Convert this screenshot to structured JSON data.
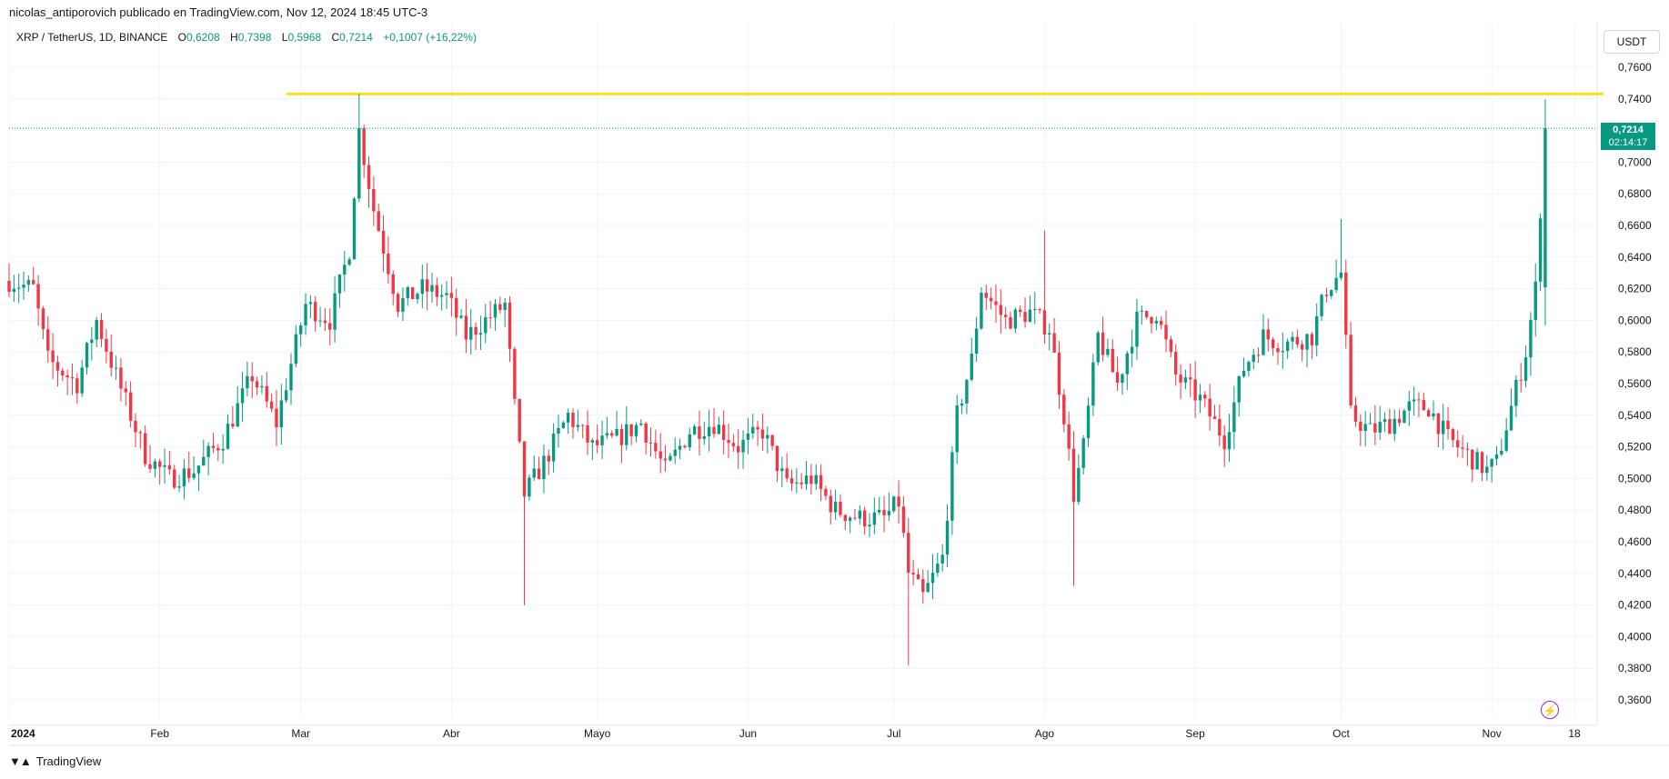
{
  "header": {
    "text": "nicolas_antiporovich publicado en TradingView.com, Nov 12, 2024 18:45 UTC-3"
  },
  "legend": {
    "symbol": "XRP / TetherUS, 1D, BINANCE",
    "o_label": "O",
    "o_value": "0,6208",
    "h_label": "H",
    "h_value": "0,7398",
    "l_label": "L",
    "l_value": "0,5968",
    "c_label": "C",
    "c_value": "0,7214",
    "change": "+0,1007 (+16,22%)"
  },
  "currency_button": "USDT",
  "price_tag": {
    "price": "0,7214",
    "countdown": "02:14:17"
  },
  "footer": {
    "brand": "TradingView"
  },
  "colors": {
    "up": "#089981",
    "down": "#f23645",
    "hline": "#f7e017",
    "grid": "#f0f3fa"
  },
  "chart_data": {
    "type": "candlestick",
    "title": "XRP / TetherUS, 1D, BINANCE",
    "ylim": [
      0.35,
      0.77
    ],
    "y_ticks": [
      "0,7600",
      "0,7400",
      "0,7200",
      "0,7000",
      "0,6800",
      "0,6600",
      "0,6400",
      "0,6200",
      "0,6000",
      "0,5800",
      "0,5600",
      "0,5400",
      "0,5200",
      "0,5000",
      "0,4800",
      "0,4600",
      "0,4400",
      "0,4200",
      "0,4000",
      "0,3800",
      "0,3600"
    ],
    "y_tick_values": [
      0.76,
      0.74,
      0.72,
      0.7,
      0.68,
      0.66,
      0.64,
      0.62,
      0.6,
      0.58,
      0.56,
      0.54,
      0.52,
      0.5,
      0.48,
      0.46,
      0.44,
      0.42,
      0.4,
      0.38,
      0.36
    ],
    "x_ticks": [
      {
        "label": "2024",
        "day": 0,
        "bold": true
      },
      {
        "label": "Feb",
        "day": 31
      },
      {
        "label": "Mar",
        "day": 60
      },
      {
        "label": "Abr",
        "day": 91
      },
      {
        "label": "Mayo",
        "day": 121
      },
      {
        "label": "Jun",
        "day": 152
      },
      {
        "label": "Jul",
        "day": 182
      },
      {
        "label": "Ago",
        "day": 213
      },
      {
        "label": "Sep",
        "day": 244
      },
      {
        "label": "Oct",
        "day": 274
      },
      {
        "label": "Nov",
        "day": 305
      },
      {
        "label": "18",
        "day": 322
      }
    ],
    "x_range_days": [
      0,
      328
    ],
    "horizontal_line": {
      "value": 0.7432,
      "from_day": 57,
      "to_day": 328
    },
    "last_price": 0.7214,
    "anchors": [
      [
        0,
        0.625
      ],
      [
        5,
        0.62
      ],
      [
        8,
        0.575
      ],
      [
        14,
        0.56
      ],
      [
        18,
        0.6
      ],
      [
        22,
        0.565
      ],
      [
        28,
        0.515
      ],
      [
        33,
        0.5
      ],
      [
        38,
        0.505
      ],
      [
        44,
        0.525
      ],
      [
        50,
        0.565
      ],
      [
        55,
        0.535
      ],
      [
        61,
        0.61
      ],
      [
        66,
        0.6
      ],
      [
        70,
        0.645
      ],
      [
        72,
        0.72
      ],
      [
        75,
        0.67
      ],
      [
        80,
        0.61
      ],
      [
        85,
        0.62
      ],
      [
        90,
        0.615
      ],
      [
        94,
        0.59
      ],
      [
        98,
        0.6
      ],
      [
        102,
        0.61
      ],
      [
        104,
        0.545
      ],
      [
        106,
        0.49
      ],
      [
        110,
        0.51
      ],
      [
        115,
        0.54
      ],
      [
        120,
        0.52
      ],
      [
        125,
        0.525
      ],
      [
        130,
        0.535
      ],
      [
        135,
        0.505
      ],
      [
        140,
        0.53
      ],
      [
        145,
        0.535
      ],
      [
        150,
        0.52
      ],
      [
        155,
        0.53
      ],
      [
        160,
        0.495
      ],
      [
        165,
        0.5
      ],
      [
        170,
        0.48
      ],
      [
        175,
        0.475
      ],
      [
        180,
        0.475
      ],
      [
        183,
        0.485
      ],
      [
        185,
        0.44
      ],
      [
        188,
        0.425
      ],
      [
        192,
        0.45
      ],
      [
        195,
        0.54
      ],
      [
        198,
        0.575
      ],
      [
        200,
        0.62
      ],
      [
        205,
        0.6
      ],
      [
        210,
        0.605
      ],
      [
        214,
        0.595
      ],
      [
        217,
        0.54
      ],
      [
        219,
        0.49
      ],
      [
        221,
        0.52
      ],
      [
        224,
        0.59
      ],
      [
        228,
        0.56
      ],
      [
        232,
        0.6
      ],
      [
        236,
        0.605
      ],
      [
        240,
        0.565
      ],
      [
        245,
        0.55
      ],
      [
        250,
        0.525
      ],
      [
        254,
        0.57
      ],
      [
        258,
        0.59
      ],
      [
        262,
        0.585
      ],
      [
        268,
        0.59
      ],
      [
        271,
        0.62
      ],
      [
        274,
        0.63
      ],
      [
        276,
        0.54
      ],
      [
        280,
        0.53
      ],
      [
        284,
        0.535
      ],
      [
        288,
        0.545
      ],
      [
        292,
        0.545
      ],
      [
        296,
        0.525
      ],
      [
        300,
        0.515
      ],
      [
        304,
        0.505
      ],
      [
        306,
        0.51
      ],
      [
        309,
        0.545
      ],
      [
        312,
        0.58
      ],
      [
        314,
        0.62
      ],
      [
        316,
        0.7214
      ]
    ]
  }
}
